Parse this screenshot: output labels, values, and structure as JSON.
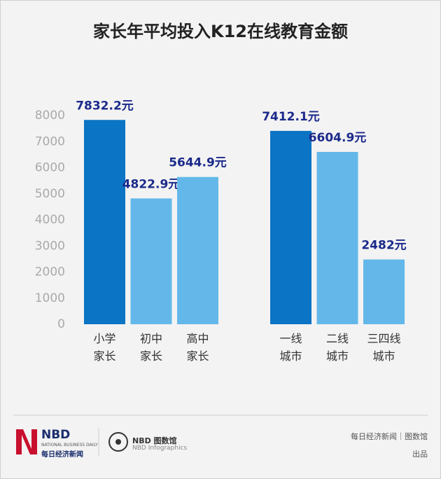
{
  "chart_data": {
    "type": "bar",
    "title": "家长年平均投入K12在线教育金额",
    "categories": [
      "小学家长",
      "初中家长",
      "高中家长",
      "一线城市",
      "二线城市",
      "三四线城市"
    ],
    "values": [
      7832.2,
      4822.9,
      5644.9,
      7412.1,
      6604.9,
      2482
    ],
    "value_labels": [
      "7832.2元",
      "4822.9元",
      "5644.9元",
      "7412.1元",
      "6604.9元",
      "2482元"
    ],
    "colors": [
      "#0b74c4",
      "#63b8e9",
      "#63b8e9",
      "#0b74c4",
      "#63b8e9",
      "#63b8e9"
    ],
    "ylim": [
      0,
      8000
    ],
    "yticks": [
      0,
      1000,
      2000,
      3000,
      4000,
      5000,
      6000,
      7000,
      8000
    ],
    "grid": false
  },
  "footer": {
    "logo": "NBD",
    "logo_sub": "NATIONAL BUSINESS DAILY",
    "logo_cn": "每日经济新闻",
    "brand": "NBD 图数馆",
    "brand_sub": "NBD Infographics",
    "credit": "每日经济新闻｜图数馆",
    "credit2": "出品"
  }
}
